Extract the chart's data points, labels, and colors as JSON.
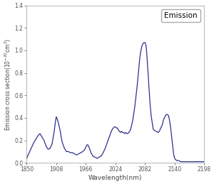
{
  "title": "Emission",
  "xlabel": "Wavelength(nm)",
  "ylabel": "Emission cross section(10",
  "xlim": [
    1850,
    2198
  ],
  "ylim": [
    0,
    1.4
  ],
  "xticks": [
    1850,
    1908,
    1966,
    2024,
    2082,
    2140,
    2198
  ],
  "yticks": [
    0.0,
    0.2,
    0.4,
    0.6,
    0.8,
    1.0,
    1.2,
    1.4
  ],
  "ytick_labels": [
    "0.0",
    "0.2",
    "0.4",
    "0.6",
    "0.8",
    "1.0",
    "1.2",
    "1.4"
  ],
  "line_color": "#2e3191",
  "bg_color": "#ffffff",
  "wavelengths": [
    1850,
    1855,
    1860,
    1864,
    1868,
    1872,
    1876,
    1880,
    1884,
    1888,
    1892,
    1896,
    1900,
    1904,
    1906,
    1908,
    1910,
    1912,
    1914,
    1916,
    1918,
    1920,
    1924,
    1928,
    1932,
    1936,
    1940,
    1944,
    1948,
    1952,
    1956,
    1960,
    1964,
    1966,
    1968,
    1970,
    1972,
    1974,
    1976,
    1980,
    1984,
    1988,
    1992,
    1996,
    2000,
    2004,
    2008,
    2012,
    2016,
    2018,
    2020,
    2022,
    2024,
    2026,
    2028,
    2030,
    2032,
    2034,
    2036,
    2038,
    2040,
    2042,
    2044,
    2046,
    2048,
    2050,
    2052,
    2054,
    2056,
    2058,
    2060,
    2062,
    2064,
    2066,
    2068,
    2070,
    2072,
    2074,
    2076,
    2078,
    2080,
    2081,
    2082,
    2083,
    2084,
    2085,
    2086,
    2088,
    2090,
    2092,
    2094,
    2096,
    2098,
    2100,
    2104,
    2108,
    2110,
    2112,
    2116,
    2118,
    2120,
    2122,
    2124,
    2126,
    2128,
    2130,
    2132,
    2134,
    2136,
    2138,
    2140,
    2142,
    2144,
    2148,
    2152,
    2156,
    2160,
    2165,
    2170,
    2178,
    2185,
    2190,
    2198
  ],
  "values": [
    0.04,
    0.09,
    0.14,
    0.18,
    0.21,
    0.24,
    0.26,
    0.23,
    0.2,
    0.15,
    0.12,
    0.13,
    0.17,
    0.28,
    0.35,
    0.41,
    0.39,
    0.36,
    0.32,
    0.28,
    0.22,
    0.18,
    0.13,
    0.1,
    0.1,
    0.09,
    0.09,
    0.08,
    0.07,
    0.08,
    0.09,
    0.1,
    0.12,
    0.14,
    0.16,
    0.16,
    0.14,
    0.12,
    0.09,
    0.06,
    0.05,
    0.04,
    0.05,
    0.06,
    0.09,
    0.13,
    0.18,
    0.23,
    0.28,
    0.3,
    0.31,
    0.32,
    0.32,
    0.31,
    0.31,
    0.29,
    0.28,
    0.27,
    0.28,
    0.27,
    0.27,
    0.26,
    0.27,
    0.26,
    0.26,
    0.27,
    0.28,
    0.3,
    0.34,
    0.38,
    0.44,
    0.5,
    0.58,
    0.66,
    0.75,
    0.85,
    0.94,
    1.0,
    1.04,
    1.06,
    1.07,
    1.07,
    1.07,
    1.06,
    1.04,
    1.0,
    0.93,
    0.8,
    0.65,
    0.52,
    0.42,
    0.36,
    0.3,
    0.29,
    0.28,
    0.27,
    0.28,
    0.3,
    0.34,
    0.38,
    0.4,
    0.42,
    0.43,
    0.43,
    0.42,
    0.38,
    0.32,
    0.24,
    0.16,
    0.08,
    0.04,
    0.03,
    0.02,
    0.02,
    0.01,
    0.01,
    0.01,
    0.01,
    0.01,
    0.01,
    0.01,
    0.01,
    0.01
  ]
}
